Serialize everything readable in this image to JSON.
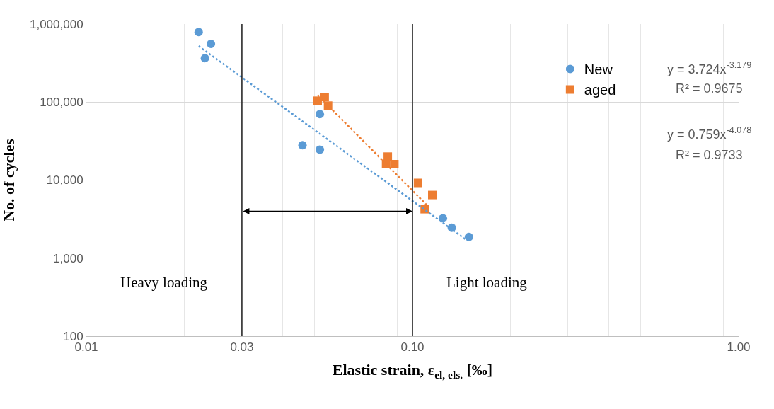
{
  "chart_data": {
    "type": "scatter",
    "xlabel": "Elastic strain, ε$_{el, els.}$ [‰]",
    "ylabel": "No. of cycles",
    "log": "xy",
    "xlim": [
      0.01,
      1.0
    ],
    "xticks": [
      {
        "value": 0.01,
        "label": "0.01"
      },
      {
        "value": 0.03,
        "label": "0.03"
      },
      {
        "value": 0.1,
        "label": "0.10"
      },
      {
        "value": 1.0,
        "label": "1.00"
      }
    ],
    "ylim": [
      100,
      1000000
    ],
    "yticks": [
      {
        "value": 100,
        "label": "100"
      },
      {
        "value": 1000,
        "label": "1,000"
      },
      {
        "value": 10000,
        "label": "10,000"
      },
      {
        "value": 100000,
        "label": "100,000"
      },
      {
        "value": 1000000,
        "label": "1,000,000"
      }
    ],
    "grid": true,
    "legend": "right",
    "series": [
      {
        "name": "New",
        "color": "#5b9bd5",
        "marker": "circle",
        "x": [
          0.0221,
          0.0241,
          0.0231,
          0.052,
          0.046,
          0.052,
          0.124,
          0.132,
          0.149
        ],
        "values": [
          790000,
          556000,
          366000,
          70000,
          28000,
          24600,
          3230,
          2460,
          1875
        ]
      },
      {
        "name": "aged",
        "color": "#ed7d31",
        "marker": "square",
        "x": [
          0.0512,
          0.0538,
          0.0551,
          0.084,
          0.083,
          0.088,
          0.104,
          0.115,
          0.109
        ],
        "values": [
          104000,
          116000,
          90000,
          20000,
          16200,
          16000,
          9200,
          6440,
          4240
        ]
      },
      {
        "type": "line",
        "color": "#5b9bd5",
        "line_style": "dotted",
        "x": [
          0.0221,
          0.145
        ],
        "values": [
          522000,
          1760
        ]
      },
      {
        "type": "line",
        "color": "#ed7d31",
        "line_style": "dotted",
        "x": [
          0.0512,
          0.1106
        ],
        "values": [
          123000,
          4800
        ]
      }
    ],
    "ref_lines": [
      {
        "axis": "x",
        "value": 0.03,
        "color": "#000000"
      },
      {
        "axis": "x",
        "value": 0.1,
        "color": "#000000"
      }
    ],
    "annotations": [
      "y = 3.724x$^{-3.179}$",
      "R² = 0.9675",
      "y = 0.759x$^{-4.078}$",
      "R² = 0.9733",
      "Heavy loading",
      "Light loading"
    ]
  }
}
